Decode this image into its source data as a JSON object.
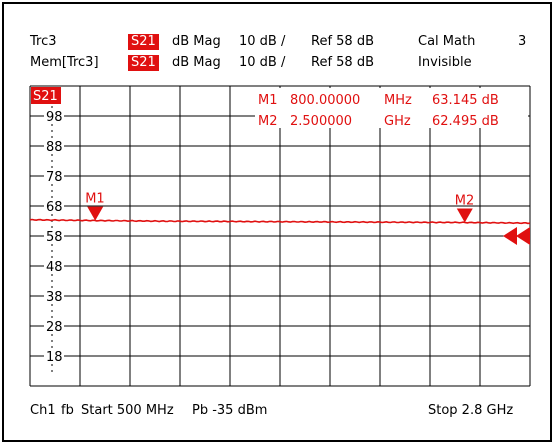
{
  "header": {
    "row1": {
      "trace": "Trc3",
      "param": "S21",
      "format": "dB Mag",
      "scale": "10 dB /",
      "ref": "Ref 58 dB",
      "cal": "Cal Math",
      "number": "3"
    },
    "row2": {
      "trace": "Mem[Trc3]",
      "param": "S21",
      "format": "dB Mag",
      "scale": "10 dB /",
      "ref": "Ref 58 dB",
      "state": "Invisible"
    }
  },
  "chart_data": {
    "type": "line",
    "trace_label": "S21",
    "x_start_mhz": 500,
    "x_stop_mhz": 2800,
    "ylim": [
      8,
      108
    ],
    "y_ticks": [
      98,
      88,
      78,
      68,
      58,
      48,
      38,
      28,
      18
    ],
    "grid": true,
    "series": [
      {
        "x": [
          500,
          800,
          1100,
          1400,
          1700,
          2000,
          2300,
          2500,
          2800
        ],
        "values": [
          63.4,
          63.15,
          62.95,
          62.85,
          62.75,
          62.65,
          62.55,
          62.5,
          62.3
        ]
      }
    ],
    "markers": [
      {
        "name": "M1",
        "x_mhz": 800,
        "freq_value": "800.00000",
        "freq_unit": "MHz",
        "level": "63.145 dB",
        "y": 63.145
      },
      {
        "name": "M2",
        "x_mhz": 2500,
        "freq_value": "2.500000",
        "freq_unit": "GHz",
        "level": "62.495 dB",
        "y": 62.495
      }
    ]
  },
  "footer": {
    "channel": "Ch1",
    "fb": "fb",
    "start": "Start  500 MHz",
    "power": "Pb  -35 dBm",
    "stop": "Stop  2.8 GHz"
  },
  "colors": {
    "trace": "#e01010",
    "grid": "#000000"
  }
}
